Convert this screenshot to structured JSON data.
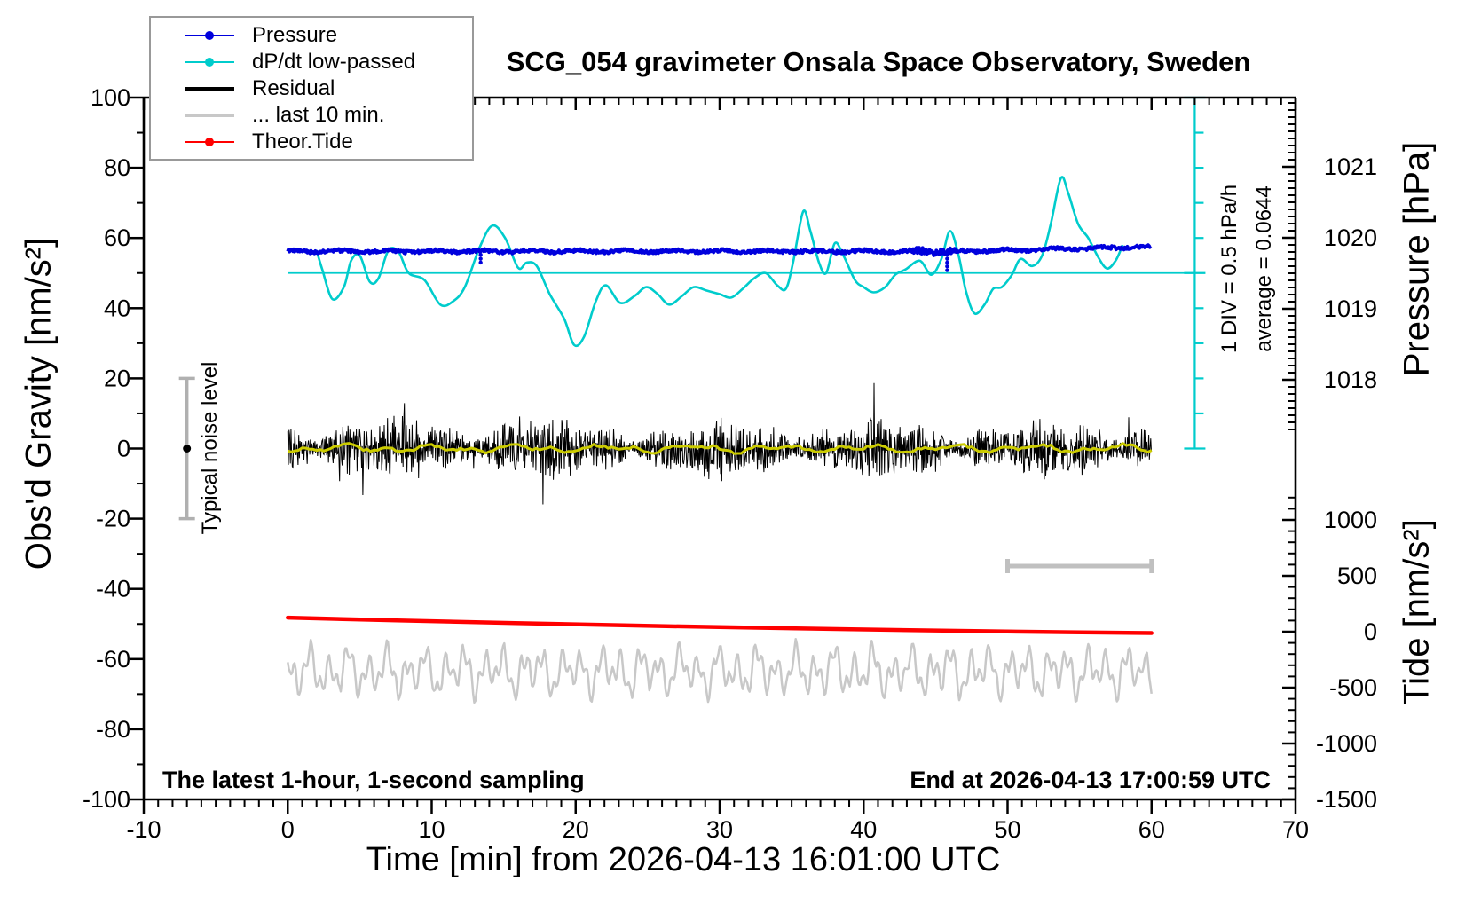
{
  "title": "SCG_054 gravimeter Onsala Space Observatory, Sweden",
  "axes": {
    "x_label": "Time [min] from 2026-04-13 16:01:00 UTC",
    "y_left_label": "Obs'd Gravity [nm/s²]",
    "y_right_pressure_label": "Pressure [hPa]",
    "y_right_tide_label": "Tide [nm/s²]"
  },
  "annotations": {
    "noise_level": "Typical noise level",
    "div_scale": "1 DIV = 0.5 hPa/h",
    "average": "average = 0.0644",
    "sampling": "The latest 1-hour, 1-second sampling",
    "end_time": "End at 2026-04-13 17:00:59 UTC"
  },
  "legend": {
    "items": [
      {
        "label": "Pressure",
        "color": "#0000dd",
        "style": "thin-dot"
      },
      {
        "label": "dP/dt low-passed",
        "color": "#00cccc",
        "style": "thin-dot"
      },
      {
        "label": "Residual",
        "color": "#000000",
        "style": "thick"
      },
      {
        "label": "... last 10 min.",
        "color": "#c8c8c8",
        "style": "thick"
      },
      {
        "label": "Theor.Tide",
        "color": "#ff0000",
        "style": "thin-dot"
      }
    ]
  },
  "chart_data": {
    "type": "line",
    "title": "SCG_054 gravimeter Onsala Space Observatory, Sweden",
    "xlabel": "Time [min] from 2026-04-13 16:01:00 UTC",
    "x_range": [
      -10,
      70
    ],
    "x_major_ticks": [
      -10,
      0,
      10,
      20,
      30,
      40,
      50,
      60,
      70
    ],
    "x_minor_step": 1,
    "y_left": {
      "label": "Obs'd Gravity [nm/s²]",
      "range": [
        -100,
        100
      ],
      "major_step": 20,
      "minor_step": 10
    },
    "pressure_axis": {
      "label": "Pressure [hPa]",
      "major_ticks": [
        1021,
        1020,
        1019,
        1018
      ],
      "minor_step": 0.1,
      "minor_range": [
        1017.3,
        1021.9
      ]
    },
    "tide_axis": {
      "label": "Tide [nm/s²]",
      "major_ticks": [
        1000,
        500,
        0,
        -500,
        -1000,
        -1500
      ],
      "minor_step": 100,
      "minor_range": [
        -1500,
        1200
      ]
    },
    "reference_line": {
      "value": 50,
      "t_from": 0,
      "t_to_x_t": 63,
      "color": "#00cccc"
    },
    "series": [
      {
        "name": "Pressure",
        "kind": "noisy_flat",
        "color": "#0000dd",
        "t_from": 0,
        "t_to": 60,
        "baseline": 56.2,
        "rise_start": 47,
        "rise_rate": 0.1,
        "rise_max": 1.3,
        "noise_amp": 0.45,
        "burst": {
          "t_from": 43.5,
          "t_to": 46.5,
          "factor": 2.2
        },
        "approx_pressure_hpa": 1019.85,
        "spikes": [
          {
            "t": 13.4,
            "to": 52.5
          },
          {
            "t": 45.8,
            "to": 50.0
          }
        ]
      },
      {
        "name": "dP/dt low-passed",
        "kind": "smooth",
        "color": "#00cccc",
        "points": [
          [
            2.0,
            56.5
          ],
          [
            2.4,
            51
          ],
          [
            3.1,
            42.6
          ],
          [
            3.9,
            46
          ],
          [
            4.4,
            53.5
          ],
          [
            5.0,
            55
          ],
          [
            5.7,
            47.5
          ],
          [
            6.3,
            48.5
          ],
          [
            7.0,
            56.5
          ],
          [
            7.7,
            56
          ],
          [
            8.4,
            50
          ],
          [
            9.5,
            48
          ],
          [
            10.6,
            41
          ],
          [
            11.5,
            42
          ],
          [
            12.3,
            46
          ],
          [
            13.3,
            57
          ],
          [
            14.2,
            63.5
          ],
          [
            15.1,
            60
          ],
          [
            16.0,
            51.5
          ],
          [
            16.6,
            53
          ],
          [
            17.3,
            52
          ],
          [
            18.2,
            44
          ],
          [
            19.2,
            37
          ],
          [
            19.9,
            29.5
          ],
          [
            20.6,
            32
          ],
          [
            21.4,
            42
          ],
          [
            22.1,
            46.5
          ],
          [
            23.1,
            41.5
          ],
          [
            24.1,
            43.5
          ],
          [
            24.9,
            46
          ],
          [
            25.7,
            44
          ],
          [
            26.5,
            41
          ],
          [
            27.4,
            43.5
          ],
          [
            28.2,
            46
          ],
          [
            29.1,
            45
          ],
          [
            30.0,
            44
          ],
          [
            30.8,
            43
          ],
          [
            31.6,
            45.5
          ],
          [
            32.4,
            48.5
          ],
          [
            33.2,
            50
          ],
          [
            34.0,
            46.5
          ],
          [
            34.6,
            45.5
          ],
          [
            35.1,
            53
          ],
          [
            35.8,
            67.5
          ],
          [
            36.3,
            62
          ],
          [
            36.9,
            53
          ],
          [
            37.4,
            50
          ],
          [
            38.0,
            58.5
          ],
          [
            38.6,
            55
          ],
          [
            39.4,
            48
          ],
          [
            40.0,
            46
          ],
          [
            40.7,
            44.5
          ],
          [
            41.5,
            46
          ],
          [
            42.2,
            49.5
          ],
          [
            42.9,
            51
          ],
          [
            43.9,
            53.5
          ],
          [
            44.7,
            49.5
          ],
          [
            45.4,
            54
          ],
          [
            46.0,
            62
          ],
          [
            46.6,
            55
          ],
          [
            47.1,
            45
          ],
          [
            47.7,
            38.5
          ],
          [
            48.4,
            41
          ],
          [
            49.0,
            45.5
          ],
          [
            49.6,
            46
          ],
          [
            50.3,
            49.5
          ],
          [
            50.9,
            54
          ],
          [
            51.7,
            52
          ],
          [
            52.4,
            55
          ],
          [
            53.0,
            64
          ],
          [
            53.7,
            77
          ],
          [
            54.2,
            73
          ],
          [
            54.9,
            64
          ],
          [
            55.6,
            60
          ],
          [
            56.3,
            54.5
          ],
          [
            56.9,
            51.3
          ],
          [
            57.5,
            53.5
          ],
          [
            58.0,
            58
          ]
        ]
      },
      {
        "name": "Residual",
        "kind": "noise_band",
        "color": "#000000",
        "t_from": 0,
        "t_to": 60,
        "center": 0,
        "typical_amp": 8,
        "max_amp": 25
      },
      {
        "name": "Residual smoothed",
        "kind": "smooth_noise",
        "color": "#cccc00",
        "t_from": 0,
        "t_to": 60,
        "center": 0,
        "amp": 1.6
      },
      {
        "name": "... last 10 min.",
        "kind": "oscillation",
        "color": "#c8c8c8",
        "t_from": 0,
        "t_to": 60,
        "center": -63.5,
        "amps": [
          4.2,
          2.8,
          2.2
        ],
        "periods_min": [
          1.35,
          0.58,
          2.6
        ],
        "jitter": 1.3
      },
      {
        "name": "Theor.Tide",
        "kind": "trend",
        "color": "#ff0000",
        "from": [
          0,
          -48.2
        ],
        "to": [
          60,
          -52.6
        ],
        "mid_value": -50.9
      }
    ],
    "markers": {
      "noise_error_bar": {
        "t": -7,
        "v_from": -20,
        "v_to": 20,
        "dot_at": 0,
        "color": "#b0b0b0"
      },
      "last10_interval_bar": {
        "t_from": 50,
        "t_to": 60,
        "v": -33.5,
        "color": "#c0c0c0"
      },
      "division_scale_bar": {
        "x_t": 63,
        "v_from": 0,
        "v_to": 100,
        "div_step": 10,
        "mid_mark": 50,
        "color": "#00cccc"
      }
    }
  }
}
